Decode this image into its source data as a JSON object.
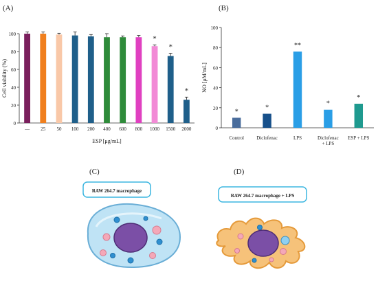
{
  "panels": {
    "a": {
      "label": "(A)"
    },
    "b": {
      "label": "(B)"
    },
    "c": {
      "label": "(C)",
      "caption": "RAW 264.7 macrophage"
    },
    "d": {
      "label": "(D)",
      "caption": "RAW 264.7 macrophage + LPS"
    }
  },
  "colors": {
    "caption_border": "#3bb6e0",
    "cell_c_body": "#bfe3f5",
    "cell_c_outline": "#6aaed6",
    "cell_d_body": "#f6c27a",
    "cell_d_outline": "#e59a3a",
    "nucleus": "#7b4fa6"
  },
  "chart_data": [
    {
      "type": "bar",
      "xlabel": "ESP [μg/mL]",
      "ylabel": "Cell viability (%)",
      "ylim": [
        0,
        100
      ],
      "yticks": [
        0,
        20,
        40,
        60,
        80,
        100
      ],
      "categories": [
        "—",
        "25",
        "50",
        "100",
        "200",
        "400",
        "600",
        "800",
        "1000",
        "1500",
        "2000"
      ],
      "values": [
        100,
        100,
        99,
        98,
        97,
        96,
        96,
        96,
        86,
        75,
        26
      ],
      "errors": [
        2,
        2,
        1.5,
        4,
        2,
        4,
        1.5,
        2,
        1.5,
        3,
        3
      ],
      "colors": [
        "#7a1f5c",
        "#f07f1e",
        "#f9c8a8",
        "#1f5f8a",
        "#1f5f8a",
        "#2e8b3a",
        "#2e8b3a",
        "#e040c0",
        "#f28ad6",
        "#1f5f8a",
        "#1f5f8a"
      ],
      "significance": [
        "",
        "",
        "",
        "",
        "",
        "",
        "",
        "",
        "*",
        "*",
        "*"
      ],
      "grid": false
    },
    {
      "type": "bar",
      "ylabel": "NO [μM/mL]",
      "ylim": [
        0,
        100
      ],
      "yticks": [
        0,
        20,
        40,
        60,
        80,
        100
      ],
      "categories": [
        "Control",
        "Diclofenac",
        "LPS",
        "Diclofenac\n+ LPS",
        "ESP + LPS"
      ],
      "values": [
        10,
        14,
        76,
        18,
        24
      ],
      "colors": [
        "#4a6d9c",
        "#17508a",
        "#2a9ee6",
        "#2a9ee6",
        "#1f9a8f"
      ],
      "significance": [
        "*",
        "*",
        "**",
        "*",
        "*"
      ],
      "grid": false
    }
  ]
}
